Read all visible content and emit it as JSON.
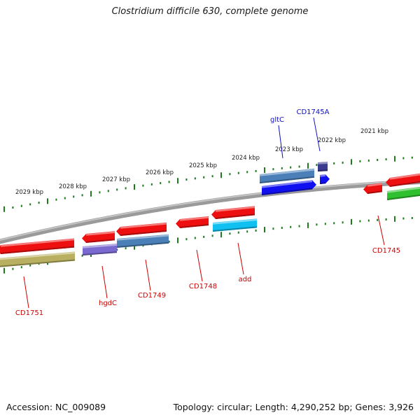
{
  "title": "Clostridium difficile 630, complete genome",
  "footer": {
    "accession": "Accession: NC_009089",
    "topology": "Topology: circular; Length: 4,290,252 bp; Genes: 3,926"
  },
  "colors": {
    "backbone": "#808080",
    "tick": "#1e7a1e",
    "label_forward": "#1010c0",
    "label_reverse": "#cc0000",
    "red": "#ee1010",
    "steelblue": "#4a7fb8",
    "navy": "#3b3b8f",
    "blue": "#1010f0",
    "purple": "#7a6ad0",
    "cyan": "#10c0f0",
    "green": "#2fc02f",
    "olive": "#b8b060"
  },
  "scale_labels": [
    "2021 kbp",
    "2022 kbp",
    "2023 kbp",
    "2024 kbp",
    "2025 kbp",
    "2026 kbp",
    "2027 kbp",
    "2028 kbp",
    "2029 kbp"
  ],
  "gene_labels": [
    {
      "text": "gltC",
      "strand": "forward"
    },
    {
      "text": "CD1745A",
      "strand": "forward"
    },
    {
      "text": "CD1745",
      "strand": "reverse"
    },
    {
      "text": "add",
      "strand": "reverse"
    },
    {
      "text": "CD1748",
      "strand": "reverse"
    },
    {
      "text": "CD1749",
      "strand": "reverse"
    },
    {
      "text": "hgdC",
      "strand": "reverse"
    },
    {
      "text": "CD1751",
      "strand": "reverse"
    }
  ]
}
